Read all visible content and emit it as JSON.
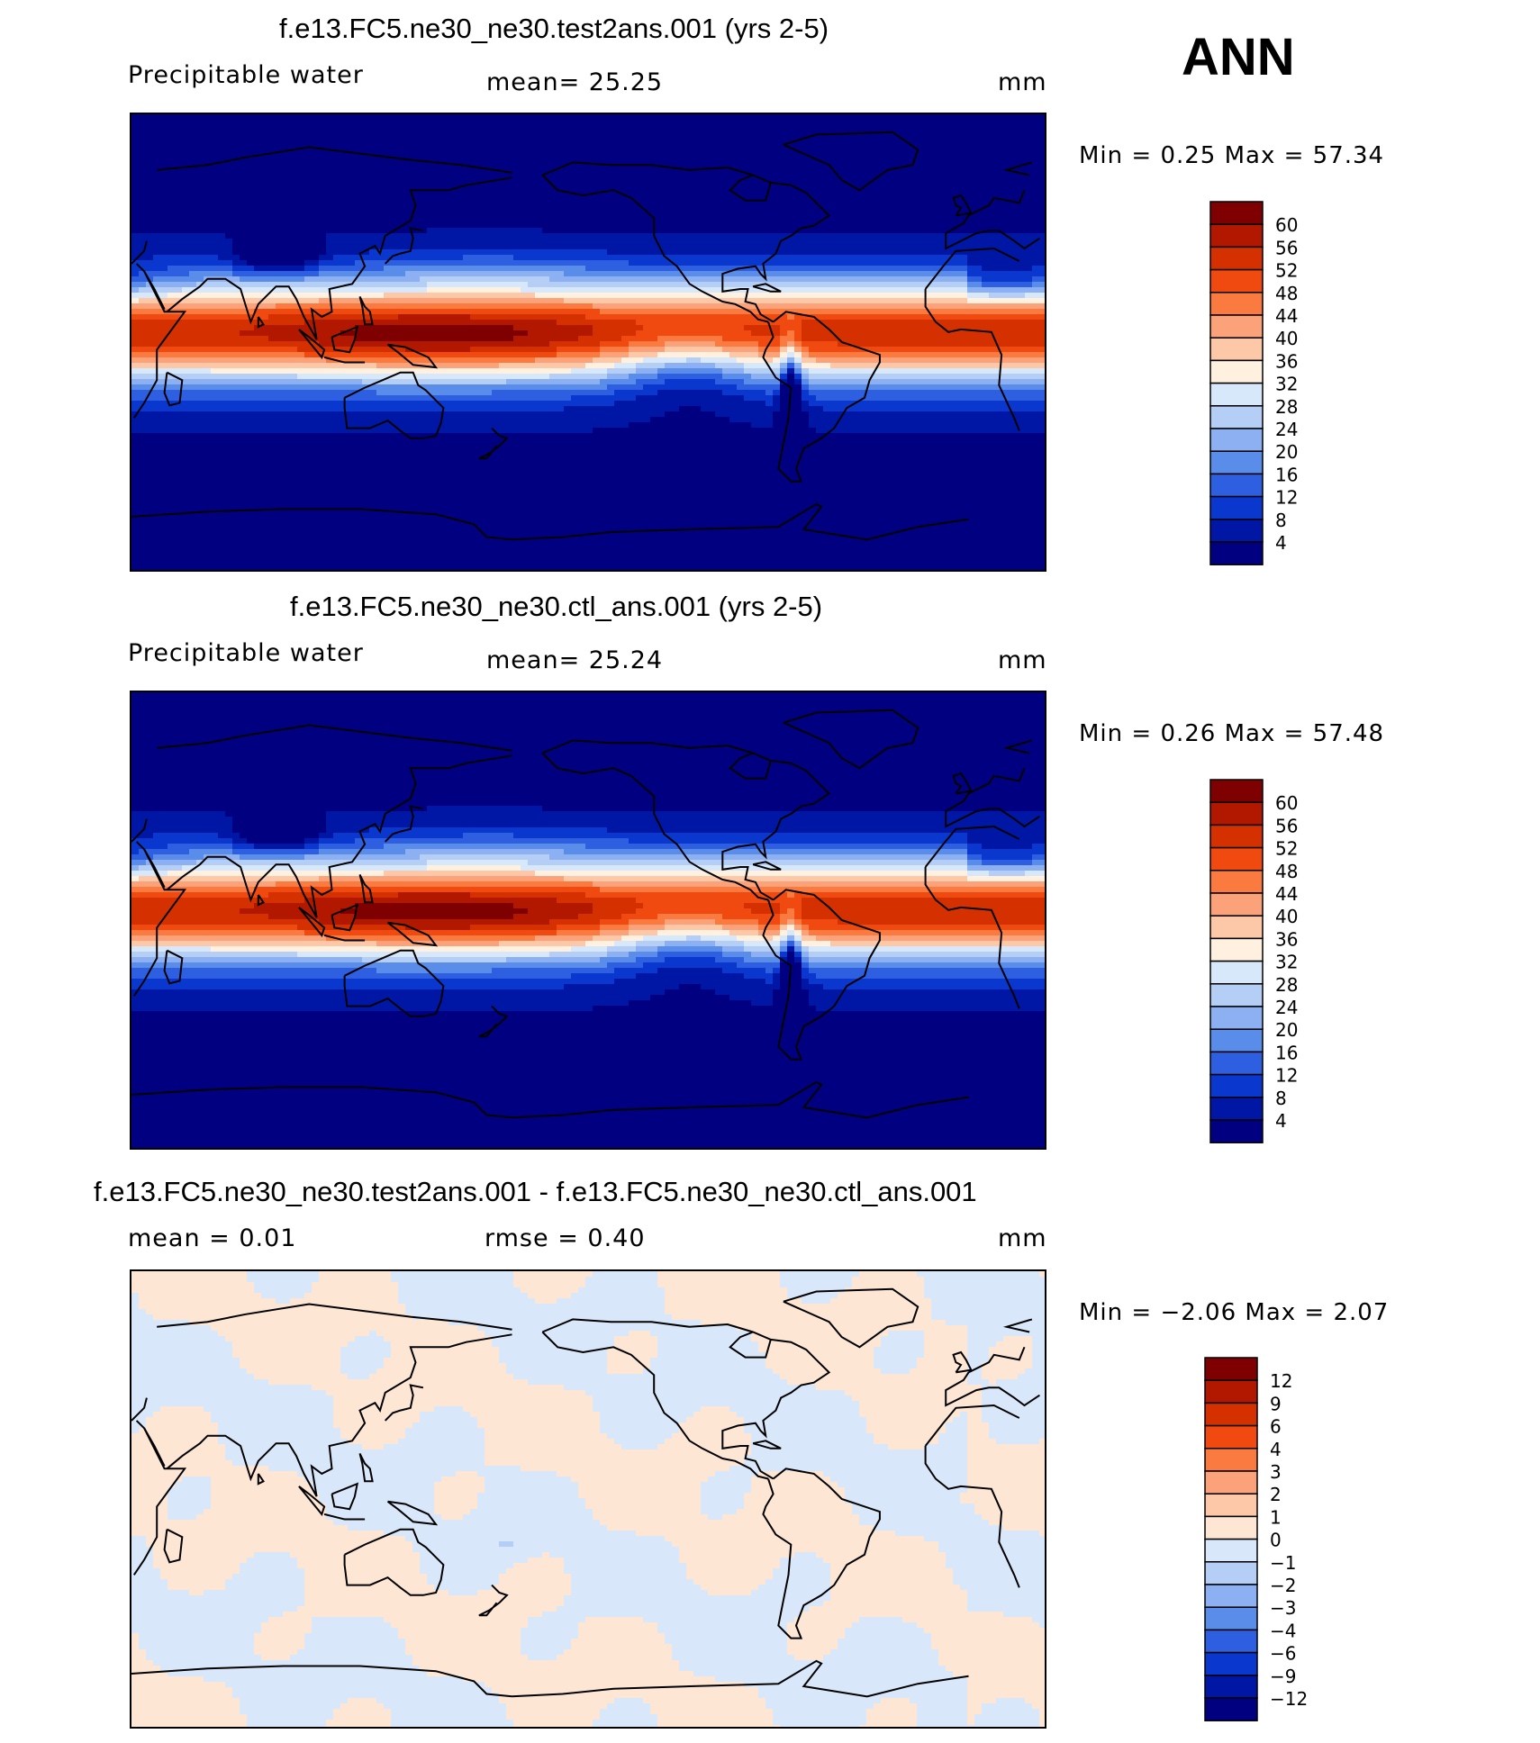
{
  "season": "ANN",
  "panels": [
    {
      "title": "f.e13.FC5.ne30_ne30.test2ans.001 (yrs 2-5)",
      "variable": "Precipitable  water",
      "stat1": "mean=   25.25",
      "stat2": "",
      "units": "mm",
      "minmax": "Min  =     0.25  Max  =    57.34",
      "kind": "field",
      "levels": [
        "60",
        "56",
        "52",
        "48",
        "44",
        "40",
        "36",
        "32",
        "28",
        "24",
        "20",
        "16",
        "12",
        "8",
        "4"
      ]
    },
    {
      "title": "f.e13.FC5.ne30_ne30.ctl_ans.001 (yrs 2-5)",
      "variable": "Precipitable  water",
      "stat1": "mean=   25.24",
      "stat2": "",
      "units": "mm",
      "minmax": "Min  =     0.26  Max  =    57.48",
      "kind": "field",
      "levels": [
        "60",
        "56",
        "52",
        "48",
        "44",
        "40",
        "36",
        "32",
        "28",
        "24",
        "20",
        "16",
        "12",
        "8",
        "4"
      ]
    },
    {
      "title": "f.e13.FC5.ne30_ne30.test2ans.001 - f.e13.FC5.ne30_ne30.ctl_ans.001",
      "variable": "mean  =     0.01",
      "stat1": "rmse  =     0.40",
      "stat2": "",
      "units": "mm",
      "minmax": "Min  =   −2.06  Max  =      2.07",
      "kind": "diff",
      "levels": [
        "12",
        "9",
        "6",
        "4",
        "3",
        "2",
        "1",
        "0",
        "−1",
        "−2",
        "−3",
        "−4",
        "−6",
        "−9",
        "−12"
      ]
    }
  ],
  "colors": {
    "field": [
      "#7f0000",
      "#b21800",
      "#d43000",
      "#f04a10",
      "#fb7a40",
      "#fca27a",
      "#fdc8a8",
      "#fff0e0",
      "#d6e8fa",
      "#b4cef6",
      "#8cb0f2",
      "#5a8cea",
      "#2d5fe0",
      "#0a38cf",
      "#0016a5",
      "#000080"
    ],
    "diff": [
      "#7f0000",
      "#b21800",
      "#d43000",
      "#f04a10",
      "#fb7a40",
      "#fca27a",
      "#fdc8a8",
      "#fde6d4",
      "#d8e8fa",
      "#b4cef6",
      "#8cb0f2",
      "#5a8cea",
      "#2d5fe0",
      "#0a38cf",
      "#0016a5",
      "#000080"
    ]
  },
  "chart_data": [
    {
      "type": "heatmap",
      "title": "f.e13.FC5.ne30_ne30.test2ans.001 (yrs 2-5)",
      "variable": "Precipitable  water",
      "units": "mm",
      "mean": 25.25,
      "min": 0.25,
      "max": 57.34,
      "contour_levels": [
        4,
        8,
        12,
        16,
        20,
        24,
        28,
        32,
        36,
        40,
        44,
        48,
        52,
        56,
        60
      ]
    },
    {
      "type": "heatmap",
      "title": "f.e13.FC5.ne30_ne30.ctl_ans.001 (yrs 2-5)",
      "variable": "Precipitable  water",
      "units": "mm",
      "mean": 25.24,
      "min": 0.26,
      "max": 57.48,
      "contour_levels": [
        4,
        8,
        12,
        16,
        20,
        24,
        28,
        32,
        36,
        40,
        44,
        48,
        52,
        56,
        60
      ]
    },
    {
      "type": "heatmap",
      "title": "f.e13.FC5.ne30_ne30.test2ans.001 - f.e13.FC5.ne30_ne30.ctl_ans.001",
      "units": "mm",
      "mean": 0.01,
      "rmse": 0.4,
      "min": -2.06,
      "max": 2.07,
      "contour_levels": [
        -12,
        -9,
        -6,
        -4,
        -3,
        -2,
        -1,
        0,
        1,
        2,
        3,
        4,
        6,
        9,
        12
      ]
    }
  ]
}
